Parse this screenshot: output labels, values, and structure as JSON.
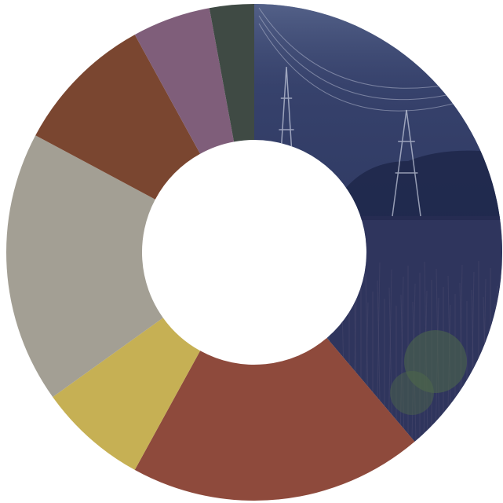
{
  "chart_data": {
    "type": "donut",
    "values": [
      38.8,
      19.2,
      7.1,
      17.7,
      9.2,
      5.1,
      2.9
    ],
    "colors": [
      "#35406a",
      "#8e4a3c",
      "#c6b054",
      "#a39f94",
      "#7a4630",
      "#7f5e7a",
      "#3f4a44"
    ]
  }
}
